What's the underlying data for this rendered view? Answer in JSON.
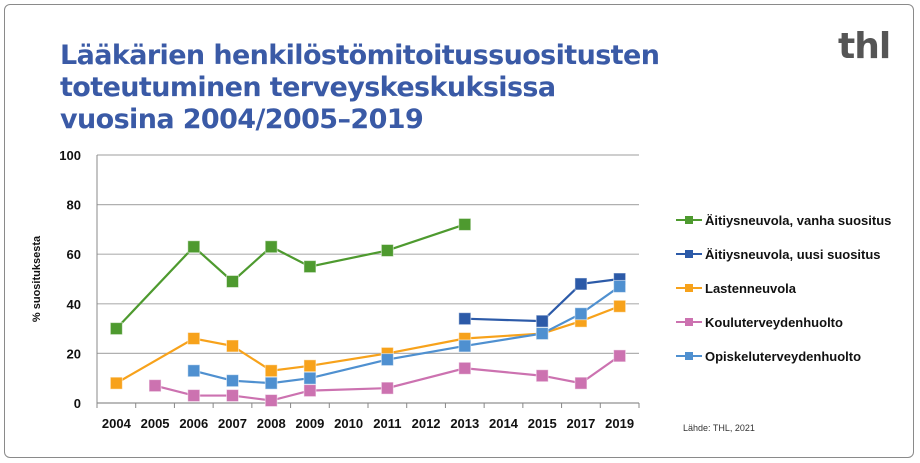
{
  "title": "Lääkärien henkilöstömitoitussuositusten toteutuminen terveyskeskuksissa vuosina 2004/2005–2019",
  "logo_text": "thl",
  "source": "Lähde: THL, 2021",
  "chart_data": {
    "type": "line",
    "title": "Lääkärien henkilöstömitoitussuositusten toteutuminen terveyskeskuksissa vuosina 2004/2005–2019",
    "xlabel": "",
    "ylabel": "% suosituksesta",
    "ylim": [
      0,
      100
    ],
    "yticks": [
      "0",
      "20",
      "40",
      "60",
      "80",
      "100"
    ],
    "grid": true,
    "legend_placement": "right",
    "categories": [
      "2004",
      "2005",
      "2006",
      "2007",
      "2008",
      "2009",
      "2010",
      "2011",
      "2012",
      "2013",
      "2014",
      "2015",
      "2017",
      "2019"
    ],
    "series": [
      {
        "name": "Äitiysneuvola, vanha suositus",
        "color": "#4e9a2f",
        "values": [
          30,
          null,
          63,
          49,
          63,
          55,
          null,
          61.5,
          null,
          72,
          null,
          null,
          null,
          null
        ]
      },
      {
        "name": "Äitiysneuvola, uusi suositus",
        "color": "#2c5aa8",
        "values": [
          null,
          null,
          null,
          null,
          null,
          null,
          null,
          null,
          null,
          34,
          null,
          33,
          48,
          50
        ]
      },
      {
        "name": "Lastenneuvola",
        "color": "#f7a21b",
        "values": [
          8,
          null,
          26,
          23,
          13,
          15,
          null,
          20,
          null,
          26,
          null,
          28,
          33,
          39
        ]
      },
      {
        "name": "Kouluterveydenhuolto",
        "color": "#cc72b0",
        "values": [
          null,
          7,
          3,
          3,
          1,
          5,
          null,
          6,
          null,
          14,
          null,
          11,
          8,
          19
        ]
      },
      {
        "name": "Opiskeluterveydenhuolto",
        "color": "#4f90d0",
        "values": [
          null,
          null,
          13,
          9,
          8,
          10,
          null,
          17.5,
          null,
          23,
          null,
          28,
          36,
          47
        ]
      }
    ]
  }
}
